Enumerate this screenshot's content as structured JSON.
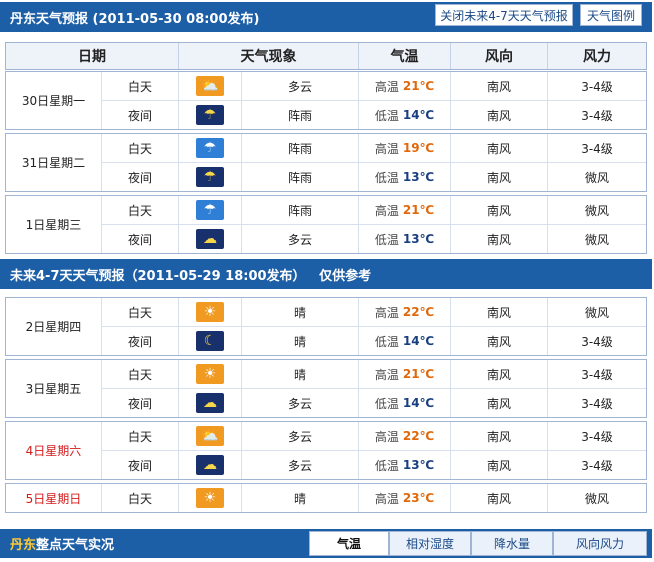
{
  "top_bar": {
    "title": "丹东天气预报 (2011-05-30  08:00发布)",
    "close_button": "关闭未来4-7天天气预报",
    "legend_button": "天气图例"
  },
  "headers": [
    "日期",
    "天气现象",
    "气温",
    "风向",
    "风力"
  ],
  "labels": {
    "high": "高温",
    "low": "低温",
    "day": "白天",
    "night": "夜间"
  },
  "colors": {
    "bar": "#1d5fa6",
    "high": "#e0680a",
    "low": "#1a3f80",
    "weekend": "#d61a1a"
  },
  "forecast_1_3": [
    {
      "date": "30日星期一",
      "rows": [
        {
          "period": "白天",
          "icon": "partly-cloudy-day-icon",
          "weather": "多云",
          "temp": "21℃",
          "dir": "南风",
          "force": "3-4级"
        },
        {
          "period": "夜间",
          "icon": "thunder-rain-night-icon",
          "weather": "阵雨",
          "temp": "14℃",
          "dir": "南风",
          "force": "3-4级"
        }
      ]
    },
    {
      "date": "31日星期二",
      "rows": [
        {
          "period": "白天",
          "icon": "shower-day-icon",
          "weather": "阵雨",
          "temp": "19℃",
          "dir": "南风",
          "force": "3-4级"
        },
        {
          "period": "夜间",
          "icon": "shower-night-icon",
          "weather": "阵雨",
          "temp": "13℃",
          "dir": "南风",
          "force": "微风"
        }
      ]
    },
    {
      "date": "1日星期三",
      "rows": [
        {
          "period": "白天",
          "icon": "shower-day-icon",
          "weather": "阵雨",
          "temp": "21℃",
          "dir": "南风",
          "force": "微风"
        },
        {
          "period": "夜间",
          "icon": "cloudy-night-icon",
          "weather": "多云",
          "temp": "13℃",
          "dir": "南风",
          "force": "微风"
        }
      ]
    }
  ],
  "mid_bar": {
    "title": "未来4-7天天气预报（2011-05-29 18:00发布）   仅供参考"
  },
  "forecast_4_7": [
    {
      "date": "2日星期四",
      "weekend": false,
      "rows": [
        {
          "period": "白天",
          "icon": "sunny-day-icon",
          "weather": "晴",
          "temp": "22℃",
          "dir": "南风",
          "force": "微风"
        },
        {
          "period": "夜间",
          "icon": "clear-night-icon",
          "weather": "晴",
          "temp": "14℃",
          "dir": "南风",
          "force": "3-4级"
        }
      ]
    },
    {
      "date": "3日星期五",
      "weekend": false,
      "rows": [
        {
          "period": "白天",
          "icon": "sunny-day-icon",
          "weather": "晴",
          "temp": "21℃",
          "dir": "南风",
          "force": "3-4级"
        },
        {
          "period": "夜间",
          "icon": "cloudy-night-icon",
          "weather": "多云",
          "temp": "14℃",
          "dir": "南风",
          "force": "3-4级"
        }
      ]
    },
    {
      "date": "4日星期六",
      "weekend": true,
      "rows": [
        {
          "period": "白天",
          "icon": "partly-cloudy-day-icon",
          "weather": "多云",
          "temp": "22℃",
          "dir": "南风",
          "force": "3-4级"
        },
        {
          "period": "夜间",
          "icon": "cloudy-night-icon",
          "weather": "多云",
          "temp": "13℃",
          "dir": "南风",
          "force": "3-4级"
        }
      ]
    },
    {
      "date": "5日星期日",
      "weekend": true,
      "rows": [
        {
          "period": "白天",
          "icon": "sunny-day-icon",
          "weather": "晴",
          "temp": "23℃",
          "dir": "南风",
          "force": "微风"
        }
      ]
    }
  ],
  "bottom_bar": {
    "city": "丹东",
    "title": "整点天气实况",
    "tabs": [
      "气温",
      "相对湿度",
      "降水量",
      "风向风力"
    ]
  }
}
